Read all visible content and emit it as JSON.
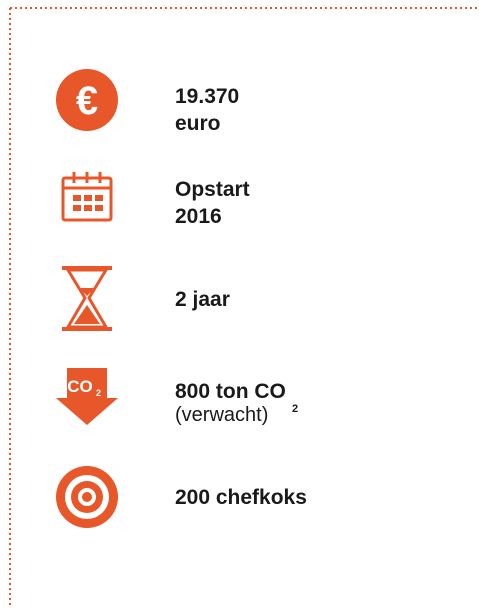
{
  "items": [
    {
      "icon_text": "€",
      "lines": [
        "19.370",
        "euro"
      ]
    },
    {
      "lines": [
        "Opstart",
        "2016"
      ]
    },
    {
      "lines": [
        "2 jaar"
      ]
    },
    {
      "icon_text": "CO",
      "icon_subscript": "2",
      "lines": [
        "800 ton CO"
      ],
      "subscript": "2",
      "detail": "(verwacht)"
    },
    {
      "lines": [
        "200 chefkoks"
      ]
    }
  ]
}
